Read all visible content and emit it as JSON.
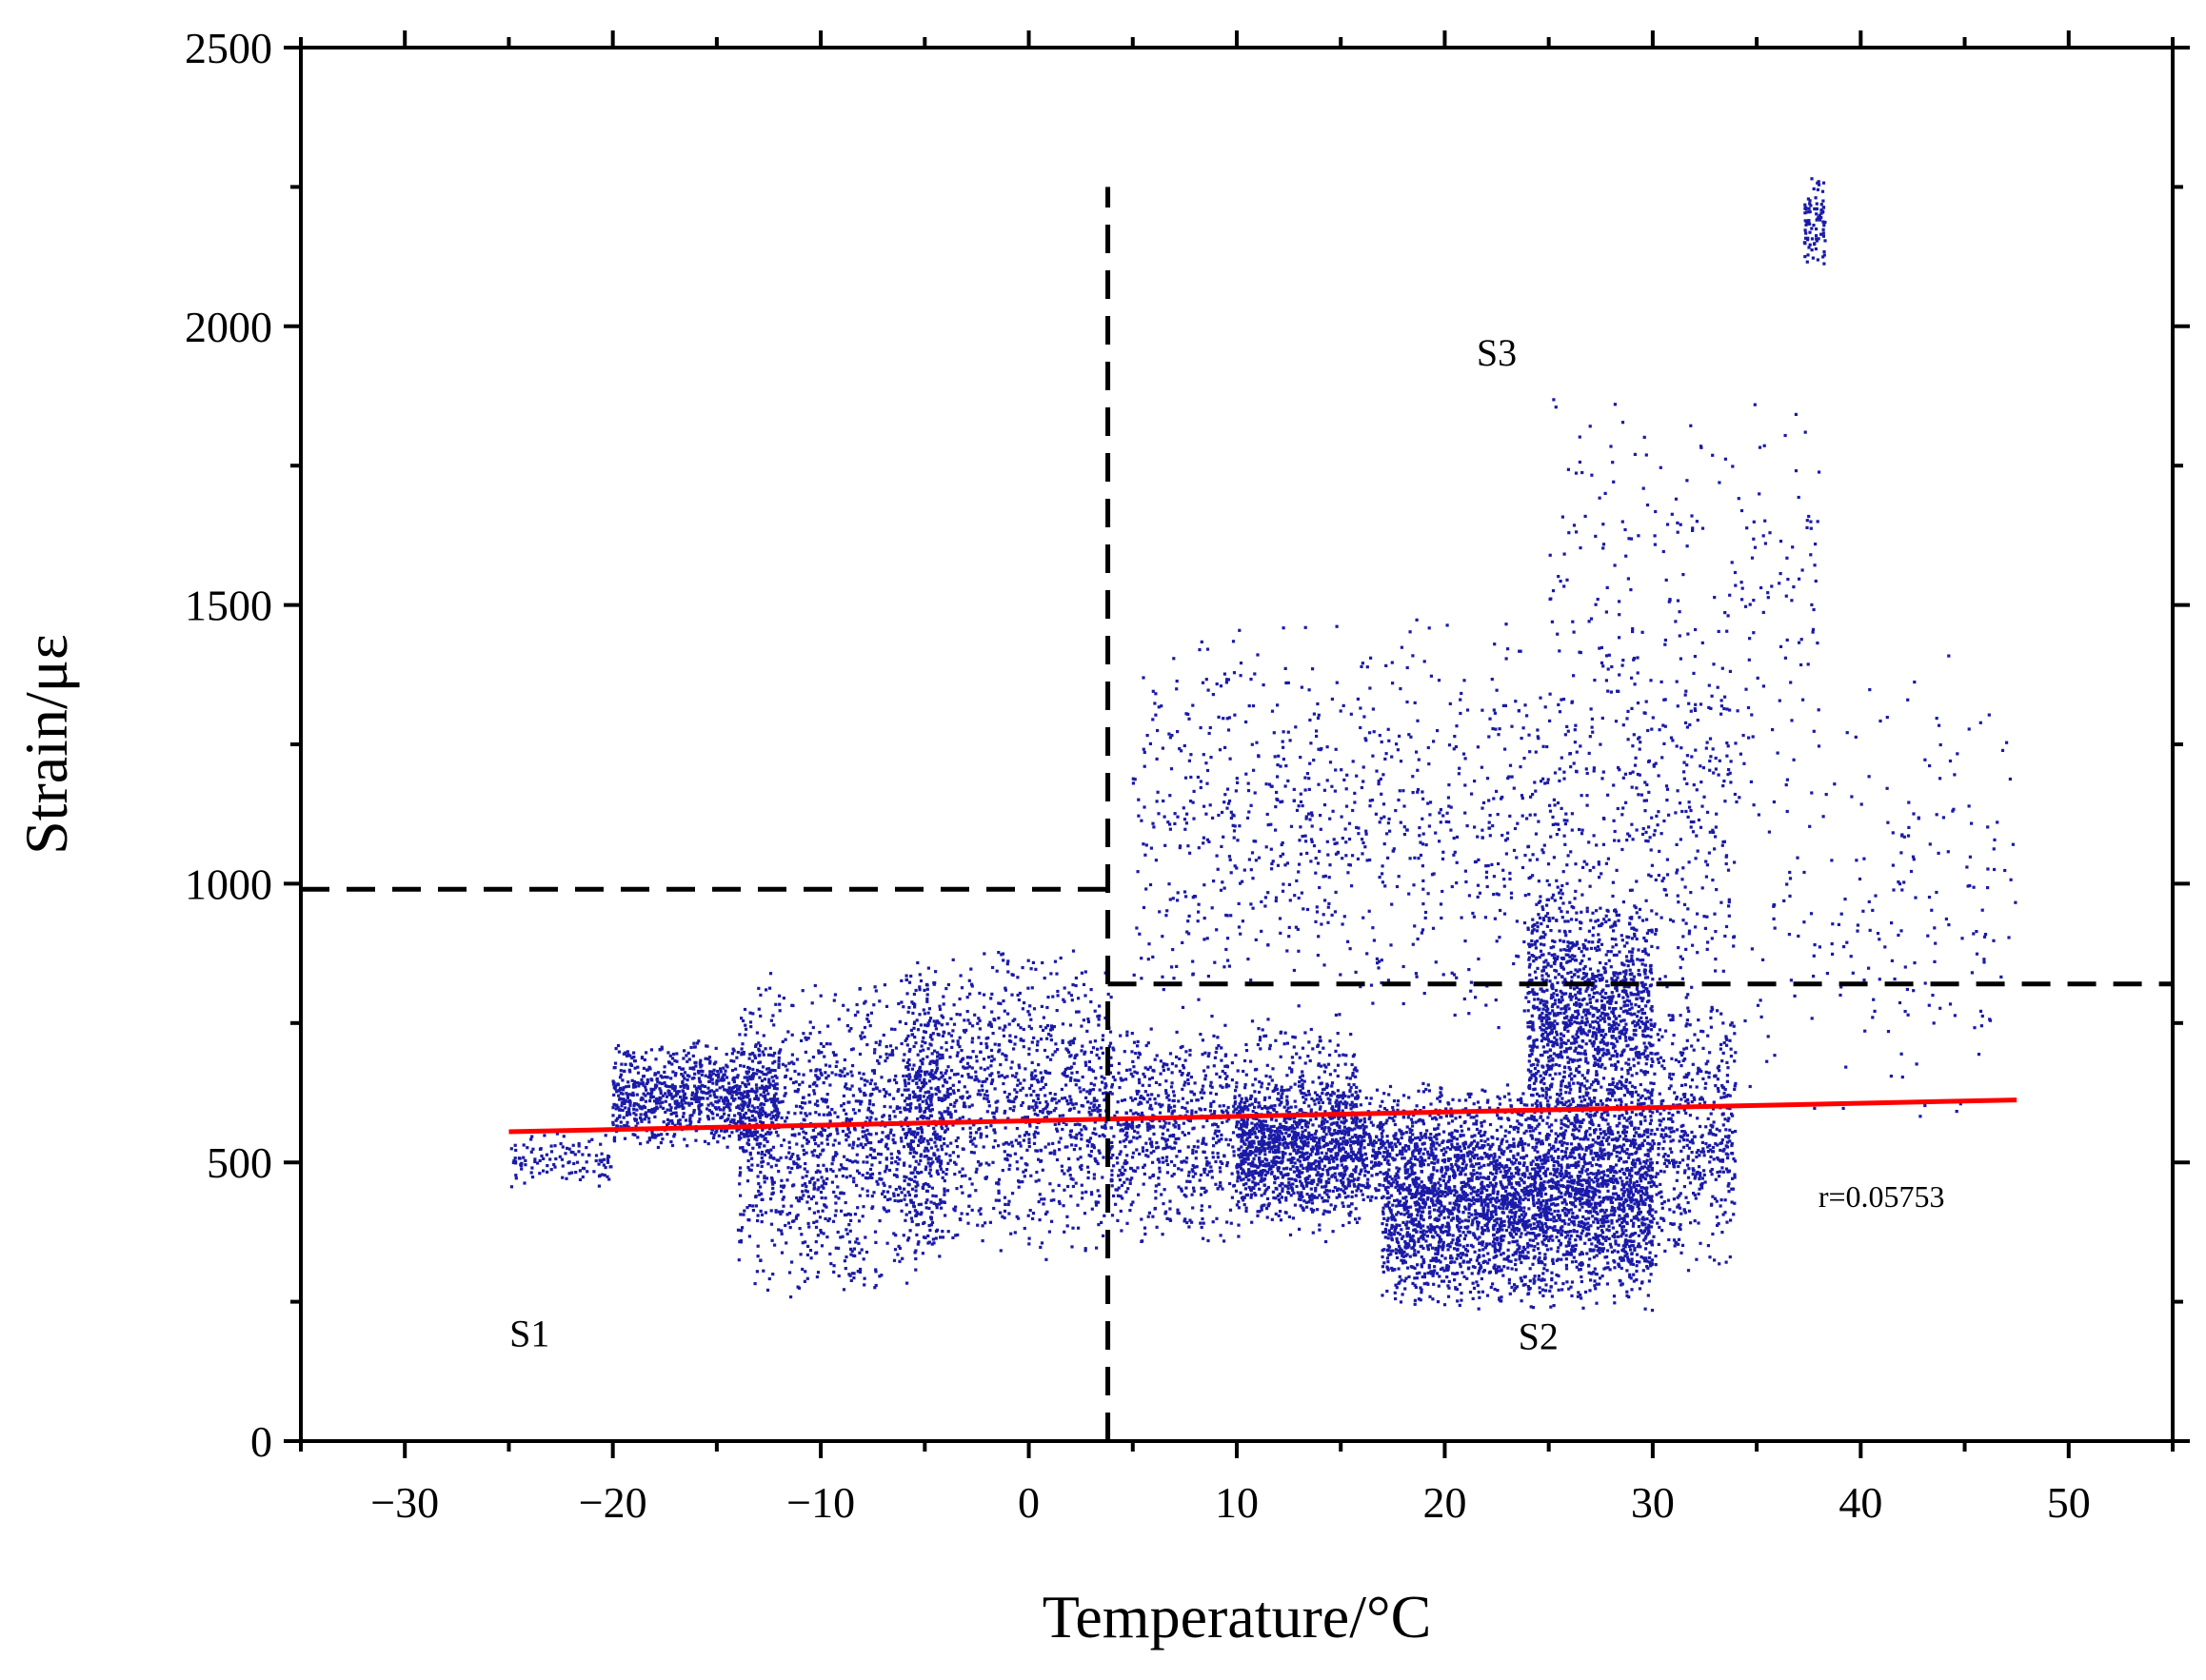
{
  "chart_data": {
    "type": "scatter",
    "title": "",
    "xlabel": "Temperature/°C",
    "ylabel": "Strain/με",
    "xlim": [
      -35,
      55
    ],
    "ylim": [
      0,
      2500
    ],
    "x_ticks": [
      -30,
      -20,
      -10,
      0,
      10,
      20,
      30,
      40,
      50
    ],
    "x_tick_labels": [
      "−30",
      "−20",
      "−10",
      "0",
      "10",
      "20",
      "30",
      "40",
      "50"
    ],
    "y_ticks": [
      0,
      500,
      1000,
      1500,
      2000,
      2500
    ],
    "y_tick_labels": [
      "0",
      "500",
      "1000",
      "1500",
      "2000",
      "2500"
    ],
    "grid": false,
    "legend": "none",
    "colors": {
      "points": "#1a1aa8",
      "fit": "#ff0000",
      "guides": "#000000"
    },
    "series": [
      {
        "kind": "point-clusters",
        "clusters": [
          {
            "x_range": [
              -25,
              -20
            ],
            "y_range": [
              450,
              560
            ],
            "count": 120
          },
          {
            "x_range": [
              -20,
              -12
            ],
            "y_range": [
              520,
              720
            ],
            "count": 900
          },
          {
            "x_range": [
              -14,
              -4
            ],
            "y_range": [
              250,
              850
            ],
            "count": 1300
          },
          {
            "x_range": [
              -6,
              4
            ],
            "y_range": [
              320,
              900
            ],
            "count": 1200
          },
          {
            "x_range": [
              4,
              16
            ],
            "y_range": [
              350,
              760
            ],
            "count": 1300
          },
          {
            "x_range": [
              10,
              17
            ],
            "y_range": [
              400,
              650
            ],
            "count": 900
          },
          {
            "x_range": [
              17,
              30
            ],
            "y_range": [
              230,
              650
            ],
            "count": 3500
          },
          {
            "x_range": [
              24,
              30
            ],
            "y_range": [
              500,
              1000
            ],
            "count": 1400
          },
          {
            "x_range": [
              5,
              34
            ],
            "y_range": [
              700,
              1500
            ],
            "count": 1300
          },
          {
            "x_range": [
              25,
              38
            ],
            "y_range": [
              1100,
              1900
            ],
            "count": 250
          },
          {
            "x_range": [
              30,
              34
            ],
            "y_range": [
              300,
              800
            ],
            "count": 500
          },
          {
            "x_range": [
              34,
              47.5
            ],
            "y_range": [
              520,
              1420
            ],
            "count": 220
          },
          {
            "x_range": [
              37.3,
              38.3
            ],
            "y_range": [
              2100,
              2280
            ],
            "count": 90
          }
        ]
      },
      {
        "name": "",
        "kind": "fit-line",
        "x": [
          -25,
          47.5
        ],
        "y": [
          555,
          612
        ]
      }
    ],
    "guide_lines": [
      {
        "orientation": "vertical",
        "x": 3.8,
        "y_range": [
          0,
          2250
        ]
      },
      {
        "orientation": "horizontal",
        "y": 990,
        "x_range": [
          -35,
          3.8
        ]
      },
      {
        "orientation": "horizontal",
        "y": 820,
        "x_range": [
          3.8,
          55
        ]
      }
    ],
    "annotations": [
      {
        "text": "S1",
        "x": -24,
        "y": 170
      },
      {
        "text": "S2",
        "x": 24.5,
        "y": 165
      },
      {
        "text": "S3",
        "x": 22.5,
        "y": 1930
      },
      {
        "text": "r=0.05753",
        "x": 41,
        "y": 420
      }
    ]
  }
}
